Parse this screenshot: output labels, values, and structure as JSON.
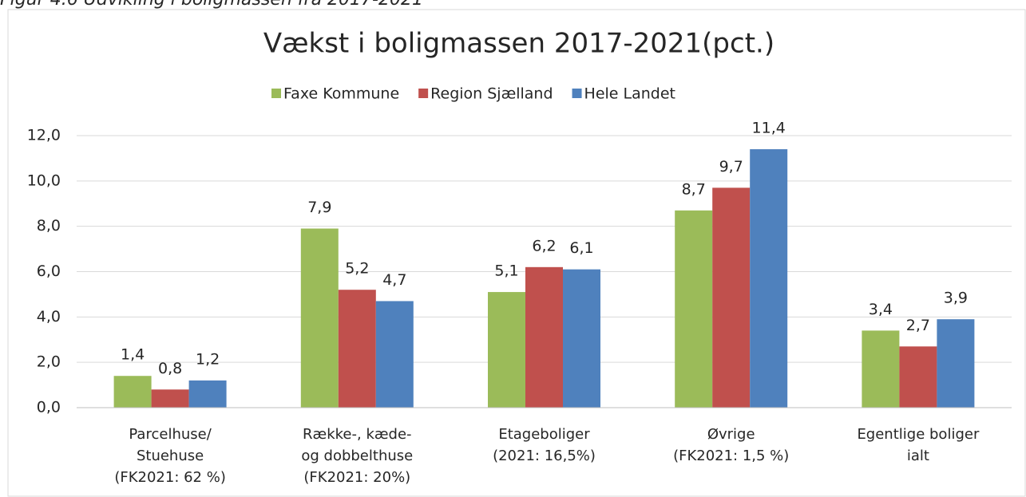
{
  "caption": "Figur 4.6 Udvikling i boligmassen fra 2017-2021",
  "chart_data": {
    "type": "bar",
    "title": "Vækst i boligmassen 2017-2021(pct.)",
    "categories": [
      "Parcelhuse/\nStuehuse\n(FK2021: 62 %)",
      "Række-, kæde-\nog dobbelthuse\n(FK2021: 20%)",
      "Etageboliger\n(2021: 16,5%)",
      "Øvrige\n(FK2021: 1,5 %)",
      "Egentlige boliger\nialt"
    ],
    "series": [
      {
        "name": "Faxe Kommune",
        "color": "#9bbb59",
        "values": [
          1.4,
          7.9,
          5.1,
          8.7,
          3.4
        ],
        "value_labels": [
          "1,4",
          "7,9",
          "5,1",
          "8,7",
          "3,4"
        ]
      },
      {
        "name": "Region Sjælland",
        "color": "#c0504d",
        "values": [
          0.8,
          5.2,
          6.2,
          9.7,
          2.7
        ],
        "value_labels": [
          "0,8",
          "5,2",
          "6,2",
          "9,7",
          "2,7"
        ]
      },
      {
        "name": "Hele Landet",
        "color": "#4f81bd",
        "values": [
          1.2,
          4.7,
          6.1,
          11.4,
          3.9
        ],
        "value_labels": [
          "1,2",
          "4,7",
          "6,1",
          "11,4",
          "3,9"
        ]
      }
    ],
    "ylim": [
      0,
      12
    ],
    "yticks": [
      {
        "value": 0,
        "label": "0,0"
      },
      {
        "value": 2,
        "label": "2,0"
      },
      {
        "value": 4,
        "label": "4,0"
      },
      {
        "value": 6,
        "label": "6,0"
      },
      {
        "value": 8,
        "label": "8,0"
      },
      {
        "value": 10,
        "label": "10,0"
      },
      {
        "value": 12,
        "label": "12,0"
      }
    ],
    "grid": true,
    "legend": "top"
  }
}
